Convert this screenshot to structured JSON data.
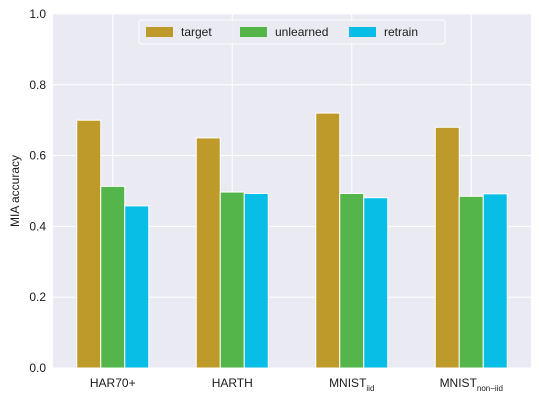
{
  "chart_data": {
    "type": "bar",
    "categories": [
      {
        "main": "HAR70+",
        "sub": ""
      },
      {
        "main": "HARTH",
        "sub": ""
      },
      {
        "main": "MNIST",
        "sub": "iid"
      },
      {
        "main": "MNIST",
        "sub": "non−iid"
      }
    ],
    "series": [
      {
        "name": "target",
        "color": "#be9a2a",
        "values": [
          0.7,
          0.65,
          0.72,
          0.68
        ]
      },
      {
        "name": "unlearned",
        "color": "#54b54a",
        "values": [
          0.513,
          0.497,
          0.493,
          0.485
        ]
      },
      {
        "name": "retrain",
        "color": "#08bde6",
        "values": [
          0.458,
          0.493,
          0.481,
          0.492
        ]
      }
    ],
    "ylabel": "MIA accuracy",
    "xlabel": "",
    "ylim": [
      0,
      1.0
    ],
    "yticks": [
      "0.0",
      "0.2",
      "0.4",
      "0.6",
      "0.8",
      "1.0"
    ],
    "grid": true,
    "legend_position": "top-center",
    "background_color": "#eaeaf2",
    "grid_color": "#ffffff"
  }
}
